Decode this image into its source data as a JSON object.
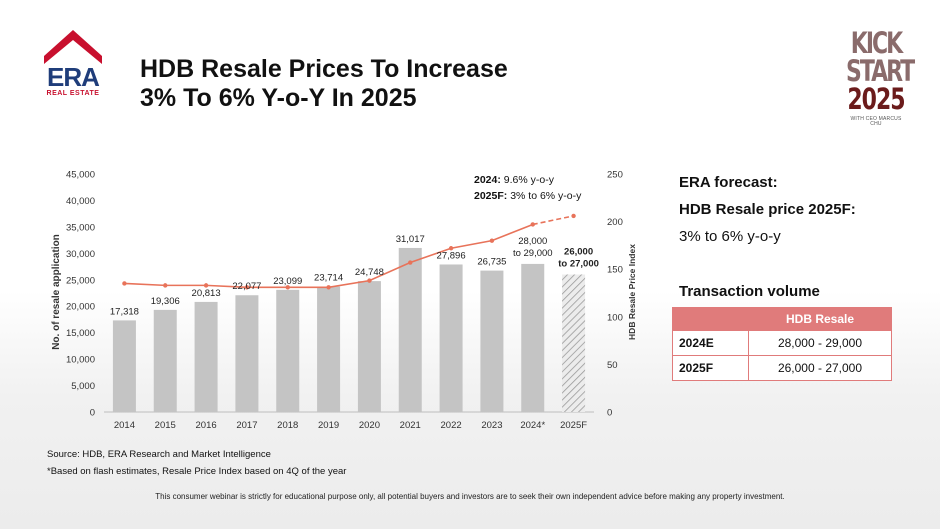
{
  "logo": {
    "text": "ERA",
    "subtext": "REAL ESTATE",
    "color": "#c8102e",
    "text_color": "#1f3d7a"
  },
  "title": {
    "line1": "HDB Resale Prices To Increase",
    "line2": "3% To 6% Y-o-Y In 2025"
  },
  "kickstart": {
    "line1": "KICK",
    "line2": "START",
    "line3": "2025",
    "line4": "WITH CEO MARCUS CHU"
  },
  "chart_data": {
    "type": "bar",
    "categories": [
      "2014",
      "2015",
      "2016",
      "2017",
      "2018",
      "2019",
      "2020",
      "2021",
      "2022",
      "2023",
      "2024*",
      "2025F"
    ],
    "values": [
      17318,
      19306,
      20813,
      22077,
      23099,
      23714,
      24748,
      31017,
      27896,
      26735,
      28000,
      26000
    ],
    "bar_labels": [
      "17,318",
      "19,306",
      "20,813",
      "22,077",
      "23,099",
      "23,714",
      "24,748",
      "31,017",
      "27,896",
      "26,735",
      "28,000\nto 29,000",
      "26,000\nto 27,000"
    ],
    "ylabel": "No. of resale application",
    "ylim": [
      0,
      45000
    ],
    "yticks": [
      0,
      5000,
      10000,
      15000,
      20000,
      25000,
      30000,
      35000,
      40000,
      45000
    ],
    "ytick_labels": [
      "0",
      "5,000",
      "10,000",
      "15,000",
      "20,000",
      "25,000",
      "30,000",
      "35,000",
      "40,000",
      "45,000"
    ],
    "y2label": "HDB Resale Price Index",
    "y2lim": [
      0,
      250
    ],
    "y2ticks": [
      0,
      50,
      100,
      150,
      200,
      250
    ],
    "line_values": [
      135,
      133,
      133,
      131,
      131,
      131,
      138,
      157,
      172,
      180,
      197,
      206
    ],
    "line_dashed_from": "2024*",
    "annotation": {
      "line1_bold": "2024:",
      "line1": " 9.6% y-o-y",
      "line2_bold": "2025F:",
      "line2": " 3% to 6% y-o-y"
    },
    "colors": {
      "bar": "#c4c4c4",
      "forecast_bar": "#d0d0d0",
      "line": "#e8735a"
    }
  },
  "forecast": {
    "heading1": "ERA forecast:",
    "heading2": "HDB Resale price 2025F:",
    "value": "3% to 6% y-o-y"
  },
  "volume": {
    "heading": "Transaction volume",
    "column": "HDB Resale",
    "rows": [
      {
        "label": "2024E",
        "value": "28,000 - 29,000"
      },
      {
        "label": "2025F",
        "value": "26,000 - 27,000"
      }
    ]
  },
  "source": "Source: HDB, ERA Research and Market Intelligence",
  "note": "*Based on flash estimates, Resale Price Index based on 4Q of the year",
  "disclaimer": "This consumer webinar is strictly for educational purpose only, all potential buyers and investors are to seek their own independent advice before making any property investment."
}
